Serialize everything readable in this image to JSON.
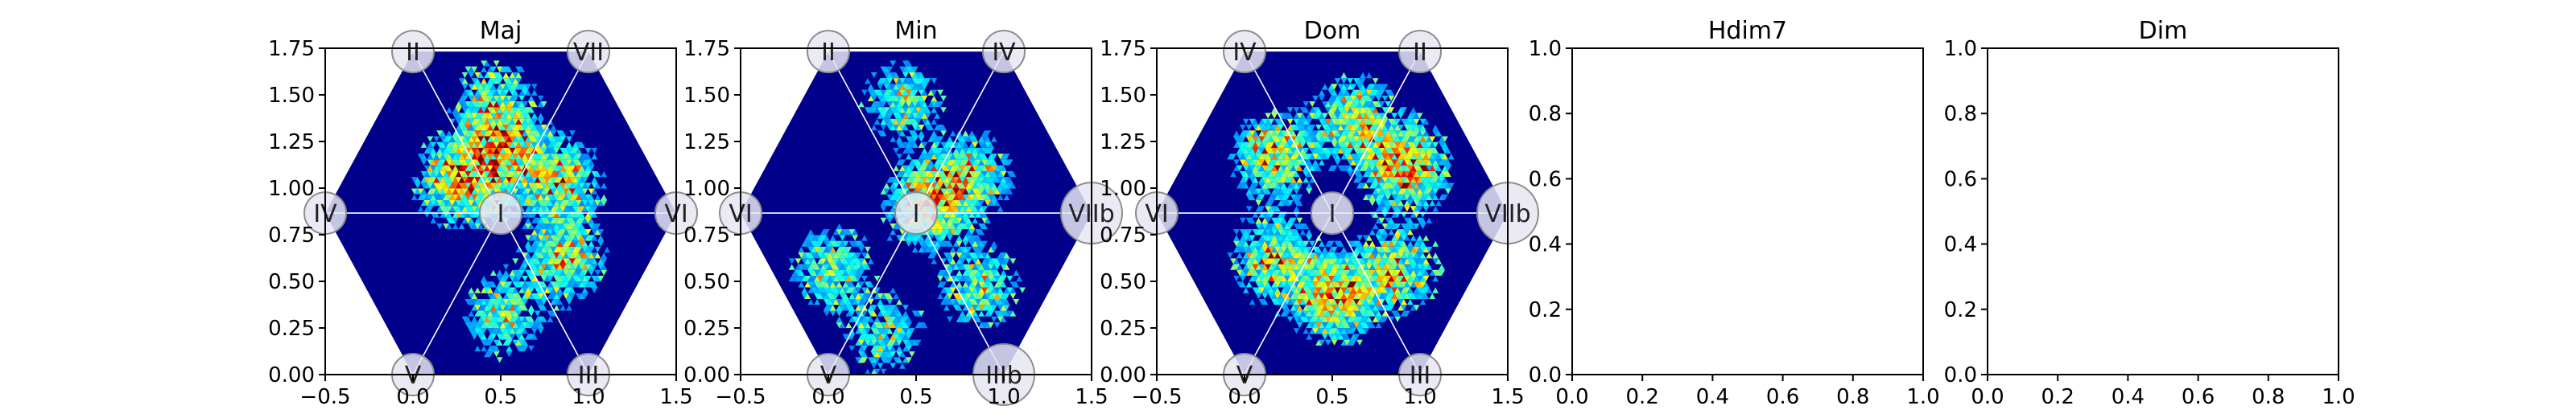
{
  "chart_data": [
    {
      "type": "heatmap",
      "title": "Maj",
      "xlim": [
        -0.5,
        1.5
      ],
      "ylim": [
        0.0,
        1.75
      ],
      "xticks": [
        "−0.5",
        "0.0",
        "0.5",
        "1.0",
        "1.5"
      ],
      "yticks": [
        "0.00",
        "0.25",
        "0.50",
        "0.75",
        "1.00",
        "1.25",
        "1.50",
        "1.75"
      ],
      "hexagon_labels": {
        "center": "I",
        "top_left": "II",
        "top_right": "VII",
        "left": "IV",
        "right": "VI",
        "bottom_left": "V",
        "bottom_right": "III"
      },
      "density_hotspots": [
        {
          "x": 0.25,
          "y": 1.02,
          "level": 0.85
        },
        {
          "x": 0.5,
          "y": 1.18,
          "level": 0.75
        },
        {
          "x": 0.82,
          "y": 1.02,
          "level": 0.7
        },
        {
          "x": 0.85,
          "y": 0.6,
          "level": 0.6
        },
        {
          "x": 0.5,
          "y": 0.3,
          "level": 0.55
        },
        {
          "x": 0.45,
          "y": 1.45,
          "level": 0.5
        }
      ],
      "colormap": "jet"
    },
    {
      "type": "heatmap",
      "title": "Min",
      "xlim": [
        -0.5,
        1.5
      ],
      "ylim": [
        0.0,
        1.75
      ],
      "xticks": [
        "−0.5",
        "0.0",
        "0.5",
        "1.0",
        "1.5"
      ],
      "yticks": [
        "0.00",
        "0.25",
        "0.50",
        "0.75",
        "1.00",
        "1.25",
        "1.50",
        "1.75"
      ],
      "hexagon_labels": {
        "center": "I",
        "top_left": "II",
        "top_right": "IV",
        "left": "VI",
        "right": "VIIb",
        "bottom_left": "V",
        "bottom_right": "IIIb"
      },
      "density_hotspots": [
        {
          "x": 0.55,
          "y": 0.9,
          "level": 0.8
        },
        {
          "x": 0.8,
          "y": 1.05,
          "level": 0.6
        },
        {
          "x": 0.4,
          "y": 1.45,
          "level": 0.5
        },
        {
          "x": 0.0,
          "y": 0.55,
          "level": 0.55
        },
        {
          "x": 0.85,
          "y": 0.45,
          "level": 0.55
        },
        {
          "x": 0.3,
          "y": 0.2,
          "level": 0.45
        }
      ],
      "colormap": "jet"
    },
    {
      "type": "heatmap",
      "title": "Dom",
      "xlim": [
        -0.5,
        1.5
      ],
      "ylim": [
        0.0,
        1.75
      ],
      "xticks": [
        "−0.5",
        "0.0",
        "0.5",
        "1.0",
        "1.5"
      ],
      "yticks": [
        "0.00",
        "0.25",
        "0.50",
        "0.75",
        "1.00",
        "1.25",
        "1.50",
        "1.75"
      ],
      "hexagon_labels": {
        "center": "I",
        "top_left": "IV",
        "top_right": "II",
        "left": "VI",
        "right": "VIIb",
        "bottom_left": "V",
        "bottom_right": "III"
      },
      "density_hotspots": [
        {
          "x": 0.9,
          "y": 1.1,
          "level": 0.95
        },
        {
          "x": 0.6,
          "y": 1.35,
          "level": 0.7
        },
        {
          "x": 0.15,
          "y": 1.15,
          "level": 0.75
        },
        {
          "x": 0.5,
          "y": 0.4,
          "level": 0.9
        },
        {
          "x": 0.15,
          "y": 0.6,
          "level": 0.7
        },
        {
          "x": 0.85,
          "y": 0.55,
          "level": 0.65
        }
      ],
      "colormap": "jet"
    },
    {
      "type": "scatter",
      "title": "Hdim7",
      "xlim": [
        0.0,
        1.0
      ],
      "ylim": [
        0.0,
        1.0
      ],
      "xticks": [
        "0.0",
        "0.2",
        "0.4",
        "0.6",
        "0.8",
        "1.0"
      ],
      "yticks": [
        "0.0",
        "0.2",
        "0.4",
        "0.6",
        "0.8",
        "1.0"
      ],
      "series": []
    },
    {
      "type": "scatter",
      "title": "Dim",
      "xlim": [
        0.0,
        1.0
      ],
      "ylim": [
        0.0,
        1.0
      ],
      "xticks": [
        "0.0",
        "0.2",
        "0.4",
        "0.6",
        "0.8",
        "1.0"
      ],
      "yticks": [
        "0.0",
        "0.2",
        "0.4",
        "0.6",
        "0.8",
        "1.0"
      ],
      "series": []
    }
  ],
  "colors": {
    "background_density": "#00008b",
    "hex_outline": "#ffffff",
    "node_fill": "#e6e6f2",
    "node_stroke": "#8c8c8c",
    "axis": "#000000"
  }
}
